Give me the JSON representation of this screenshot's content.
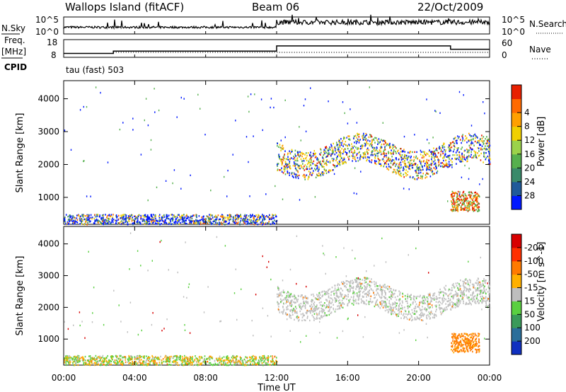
{
  "header": {
    "station": "Wallops Island (fitACF)",
    "beam": "Beam 06",
    "date": "22/Oct/2009"
  },
  "colors": {
    "power_scale": [
      "#0018ff",
      "#205a9a",
      "#3a8a6a",
      "#56b04e",
      "#9bd24a",
      "#f0d000",
      "#ffa000",
      "#ff6a00",
      "#e82000"
    ],
    "velocity_scale": [
      "#1030c0",
      "#2a6e9a",
      "#3a9a5a",
      "#5ad040",
      "#bebebe",
      "#ffb000",
      "#ff7a00",
      "#ff3000",
      "#d80000"
    ],
    "ground_scatter": "#c0c0c0"
  },
  "chart_data": [
    {
      "type": "line",
      "title": "",
      "left_labels": [
        "N.Sky"
      ],
      "right_labels": [
        "N.Search"
      ],
      "yticks_left": [
        "10^5",
        "10^0"
      ],
      "yticks_right": [
        "10^5",
        "10^0"
      ],
      "x_range": [
        "00:00",
        "24:00"
      ]
    },
    {
      "type": "line",
      "left_labels": [
        "Freq.",
        "[MHz]"
      ],
      "right_labels": [
        "Nave"
      ],
      "yticks_left": [
        "18",
        "8"
      ],
      "yticks_right": [
        "60",
        "0"
      ],
      "series": [
        {
          "name": "Freq.",
          "x": [
            0,
            2.8,
            2.8,
            12.0,
            12.0,
            21.8,
            21.8,
            24
          ],
          "y": [
            10.5,
            10.5,
            12.0,
            12.0,
            15.3,
            15.3,
            13.2,
            13.2
          ]
        },
        {
          "name": "Nave",
          "x": [
            0,
            24
          ],
          "y": [
            10,
            10
          ]
        }
      ]
    },
    {
      "type": "table",
      "left_label": "CPID",
      "program": "tau (fast) 503"
    },
    {
      "type": "heatmap",
      "ylabel": "Slant Range [km]",
      "yticks": [
        1000,
        2000,
        3000,
        4000
      ],
      "ylim": [
        180,
        4550
      ],
      "colorbar": {
        "label": "Power [dB]",
        "ticks": [
          4,
          8,
          12,
          16,
          20,
          24,
          28
        ]
      },
      "regions": [
        {
          "x_range": [
            0.0,
            12.0
          ],
          "range_km": [
            200,
            500
          ],
          "value": 10
        },
        {
          "x_range": [
            12.0,
            24.0
          ],
          "range_km": [
            1500,
            2900
          ],
          "value": 16
        },
        {
          "x_range": [
            21.8,
            23.4
          ],
          "range_km": [
            600,
            1200
          ],
          "value": 22
        }
      ]
    },
    {
      "type": "heatmap",
      "ylabel": "Slant Range [km]",
      "yticks": [
        1000,
        2000,
        3000,
        4000
      ],
      "ylim": [
        180,
        4550
      ],
      "xlabel": "Time UT",
      "xticks": [
        "00:00",
        "04:00",
        "08:00",
        "12:00",
        "16:00",
        "20:00",
        "00:00"
      ],
      "colorbar": {
        "label": "Velocity [m s^-1]",
        "ticks": [
          200,
          100,
          50,
          15,
          -15,
          -50,
          -100,
          -200
        ]
      },
      "regions": [
        {
          "x_range": [
            0.0,
            12.0
          ],
          "range_km": [
            200,
            500
          ],
          "value": 15
        },
        {
          "x_range": [
            12.0,
            24.0
          ],
          "range_km": [
            1500,
            2900
          ],
          "value": 0
        },
        {
          "x_range": [
            21.8,
            23.4
          ],
          "range_km": [
            600,
            1200
          ],
          "value": -80
        }
      ]
    }
  ]
}
